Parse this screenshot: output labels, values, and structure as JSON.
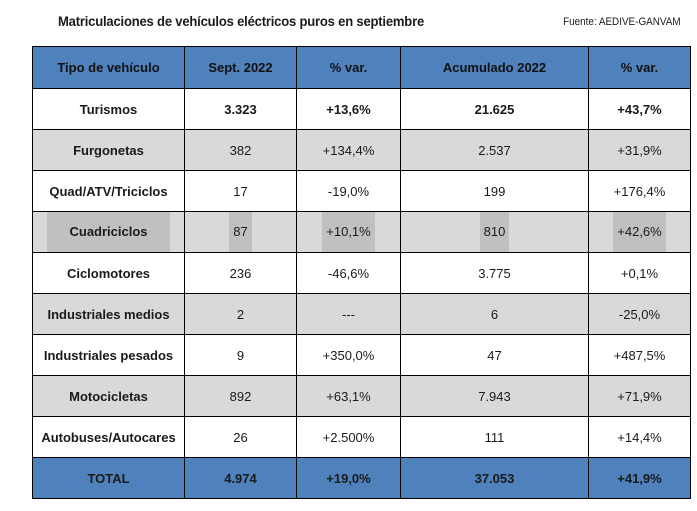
{
  "title": "Matriculaciones de vehículos eléctricos puros en septiembre",
  "source": "Fuente: AEDIVE-GANVAM",
  "colors": {
    "header": "#4F81BD",
    "stripe": "#D9D9D9",
    "highlight": "#C0C0C0"
  },
  "table": {
    "headers": [
      "Tipo de vehículo",
      "Sept. 2022",
      "% var.",
      "Acumulado 2022",
      "% var."
    ],
    "rows": [
      {
        "tipo": "Turismos",
        "sept": "3.323",
        "var1": "+13,6%",
        "acum": "21.625",
        "var2": "+43,7%"
      },
      {
        "tipo": "Furgonetas",
        "sept": "382",
        "var1": "+134,4%",
        "acum": "2.537",
        "var2": "+31,9%"
      },
      {
        "tipo": "Quad/ATV/Triciclos",
        "sept": "17",
        "var1": "-19,0%",
        "acum": "199",
        "var2": "+176,4%"
      },
      {
        "tipo": "Cuadriciclos",
        "sept": "87",
        "var1": "+10,1%",
        "acum": "810",
        "var2": "+42,6%"
      },
      {
        "tipo": "Ciclomotores",
        "sept": "236",
        "var1": "-46,6%",
        "acum": "3.775",
        "var2": "+0,1%"
      },
      {
        "tipo": "Industriales medios",
        "sept": "2",
        "var1": "---",
        "acum": "6",
        "var2": "-25,0%"
      },
      {
        "tipo": "Industriales pesados",
        "sept": "9",
        "var1": "+350,0%",
        "acum": "47",
        "var2": "+487,5%"
      },
      {
        "tipo": "Motocicletas",
        "sept": "892",
        "var1": "+63,1%",
        "acum": "7.943",
        "var2": "+71,9%"
      },
      {
        "tipo": "Autobuses/Autocares",
        "sept": "26",
        "var1": "+2.500%",
        "acum": "111",
        "var2": "+14,4%"
      }
    ],
    "total": {
      "tipo": "TOTAL",
      "sept": "4.974",
      "var1": "+19,0%",
      "acum": "37.053",
      "var2": "+41,9%"
    }
  }
}
